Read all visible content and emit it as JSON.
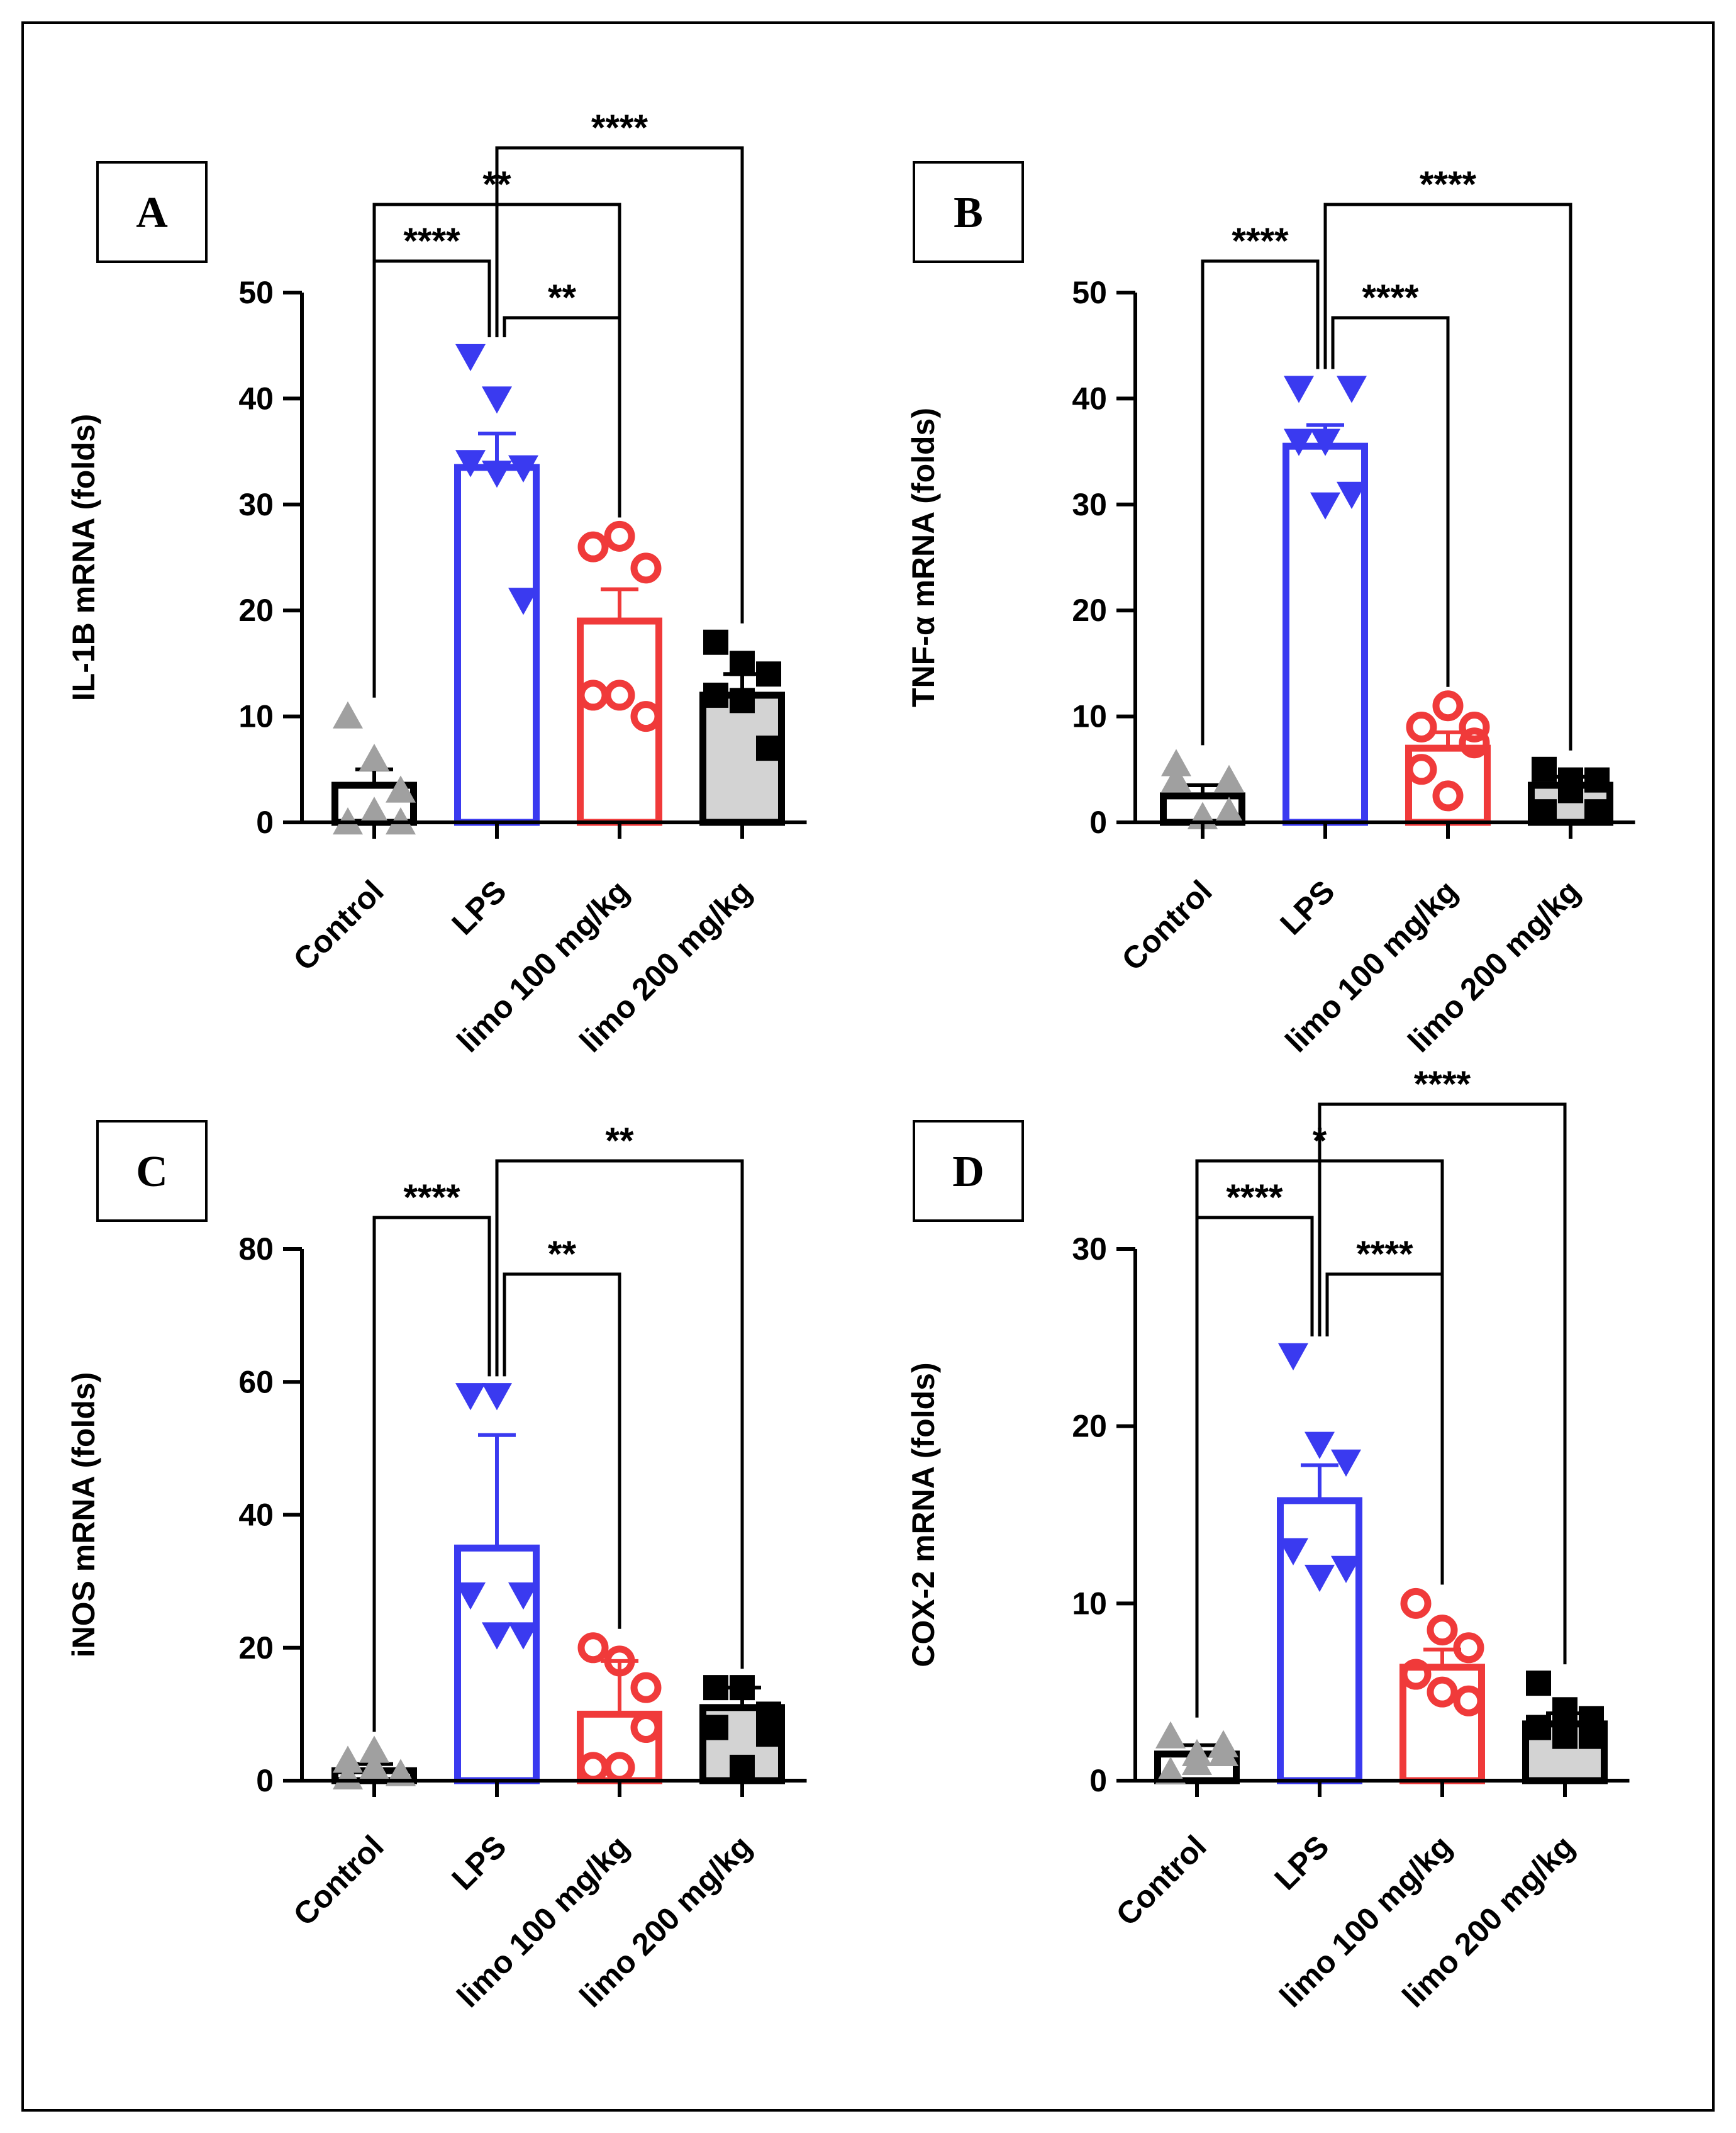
{
  "chart_data": [
    {
      "type": "bar",
      "panel_label": "A",
      "ylabel": "IL-1B mRNA (folds)",
      "ylim": [
        0,
        50
      ],
      "yticks": [
        "0",
        "10",
        "20",
        "30",
        "40",
        "50"
      ],
      "categories": [
        "Control",
        "LPS",
        "limo 100 mg/kg",
        "limo 200 mg/kg"
      ],
      "values": [
        3.5,
        33.5,
        19,
        12
      ],
      "sem": [
        1.5,
        3.2,
        3.0,
        2.0
      ],
      "points": [
        [
          10,
          6,
          3,
          0,
          1,
          0
        ],
        [
          44,
          40,
          33.5,
          34,
          33,
          21
        ],
        [
          26,
          27,
          24,
          12,
          12,
          10
        ],
        [
          17,
          15,
          14,
          12,
          11.5,
          7
        ]
      ],
      "comparisons": [
        {
          "from": 1,
          "to": 3,
          "label": "****"
        },
        {
          "from": 0,
          "to": 2,
          "label": "**"
        },
        {
          "from": 0,
          "to": 1,
          "label": "****"
        },
        {
          "from": 1,
          "to": 2,
          "label": "**"
        }
      ]
    },
    {
      "type": "bar",
      "panel_label": "B",
      "ylabel": "TNF-α mRNA (folds)",
      "ylim": [
        0,
        50
      ],
      "yticks": [
        "0",
        "10",
        "20",
        "30",
        "40",
        "50"
      ],
      "categories": [
        "Control",
        "LPS",
        "limo 100 mg/kg",
        "limo 200 mg/kg"
      ],
      "values": [
        2.5,
        35.5,
        7,
        3.5
      ],
      "sem": [
        1.0,
        2.0,
        1.5,
        0.8
      ],
      "points": [
        [
          5.5,
          0.5,
          4,
          4,
          0.5,
          1
        ],
        [
          41,
          36,
          41,
          36,
          30,
          31
        ],
        [
          9,
          11,
          9,
          5,
          2.5,
          7.5
        ],
        [
          5,
          4,
          1,
          1,
          3,
          4
        ]
      ],
      "comparisons": [
        {
          "from": 1,
          "to": 3,
          "label": "****"
        },
        {
          "from": 0,
          "to": 1,
          "label": "****"
        },
        {
          "from": 1,
          "to": 2,
          "label": "****"
        }
      ]
    },
    {
      "type": "bar",
      "panel_label": "C",
      "ylabel": "iNOS mRNA (folds)",
      "ylim": [
        0,
        80
      ],
      "yticks": [
        "0",
        "20",
        "40",
        "60",
        "80"
      ],
      "categories": [
        "Control",
        "LPS",
        "limo 100 mg/kg",
        "limo 200 mg/kg"
      ],
      "values": [
        1.5,
        35,
        10,
        11
      ],
      "sem": [
        1.0,
        17,
        8,
        3
      ],
      "points": [
        [
          3,
          4.5,
          1,
          0.5,
          2,
          1
        ],
        [
          58,
          58,
          28,
          28,
          22,
          22
        ],
        [
          20,
          18,
          14,
          2,
          2,
          8
        ],
        [
          14,
          14,
          10,
          8,
          2,
          7
        ]
      ],
      "comparisons": [
        {
          "from": 1,
          "to": 3,
          "label": "**"
        },
        {
          "from": 0,
          "to": 1,
          "label": "****"
        },
        {
          "from": 1,
          "to": 2,
          "label": "**"
        }
      ]
    },
    {
      "type": "bar",
      "panel_label": "D",
      "ylabel": "COX-2 mRNA (folds)",
      "ylim": [
        0,
        30
      ],
      "yticks": [
        "0",
        "10",
        "20",
        "30"
      ],
      "categories": [
        "Control",
        "LPS",
        "limo 100 mg/kg",
        "limo 200 mg/kg"
      ],
      "values": [
        1.5,
        15.8,
        6.4,
        3.2
      ],
      "sem": [
        0.5,
        2.0,
        1.0,
        0.6
      ],
      "points": [
        [
          2.5,
          1.5,
          2,
          0.5,
          1,
          1.5
        ],
        [
          24,
          19,
          18,
          13,
          11.5,
          12
        ],
        [
          10,
          8.5,
          7.5,
          6,
          5,
          4.5
        ],
        [
          5.5,
          4,
          3.5,
          3,
          2.5,
          2.5
        ]
      ],
      "comparisons": [
        {
          "from": 1,
          "to": 3,
          "label": "****"
        },
        {
          "from": 0,
          "to": 2,
          "label": "*"
        },
        {
          "from": 0,
          "to": 1,
          "label": "****"
        },
        {
          "from": 1,
          "to": 2,
          "label": "****"
        }
      ]
    }
  ],
  "group_colors": {
    "edge": [
      "#000000",
      "#3a3af0",
      "#f03a3a",
      "#000000"
    ],
    "fill": [
      "#ffffff",
      "#ffffff",
      "#ffffff",
      "#d3d3d3"
    ],
    "marker": [
      "#a0a0a0",
      "#3a3af0",
      "#f03a3a",
      "#000000"
    ],
    "marker_shape": [
      "triangle-up",
      "triangle-down",
      "circle",
      "square"
    ]
  }
}
